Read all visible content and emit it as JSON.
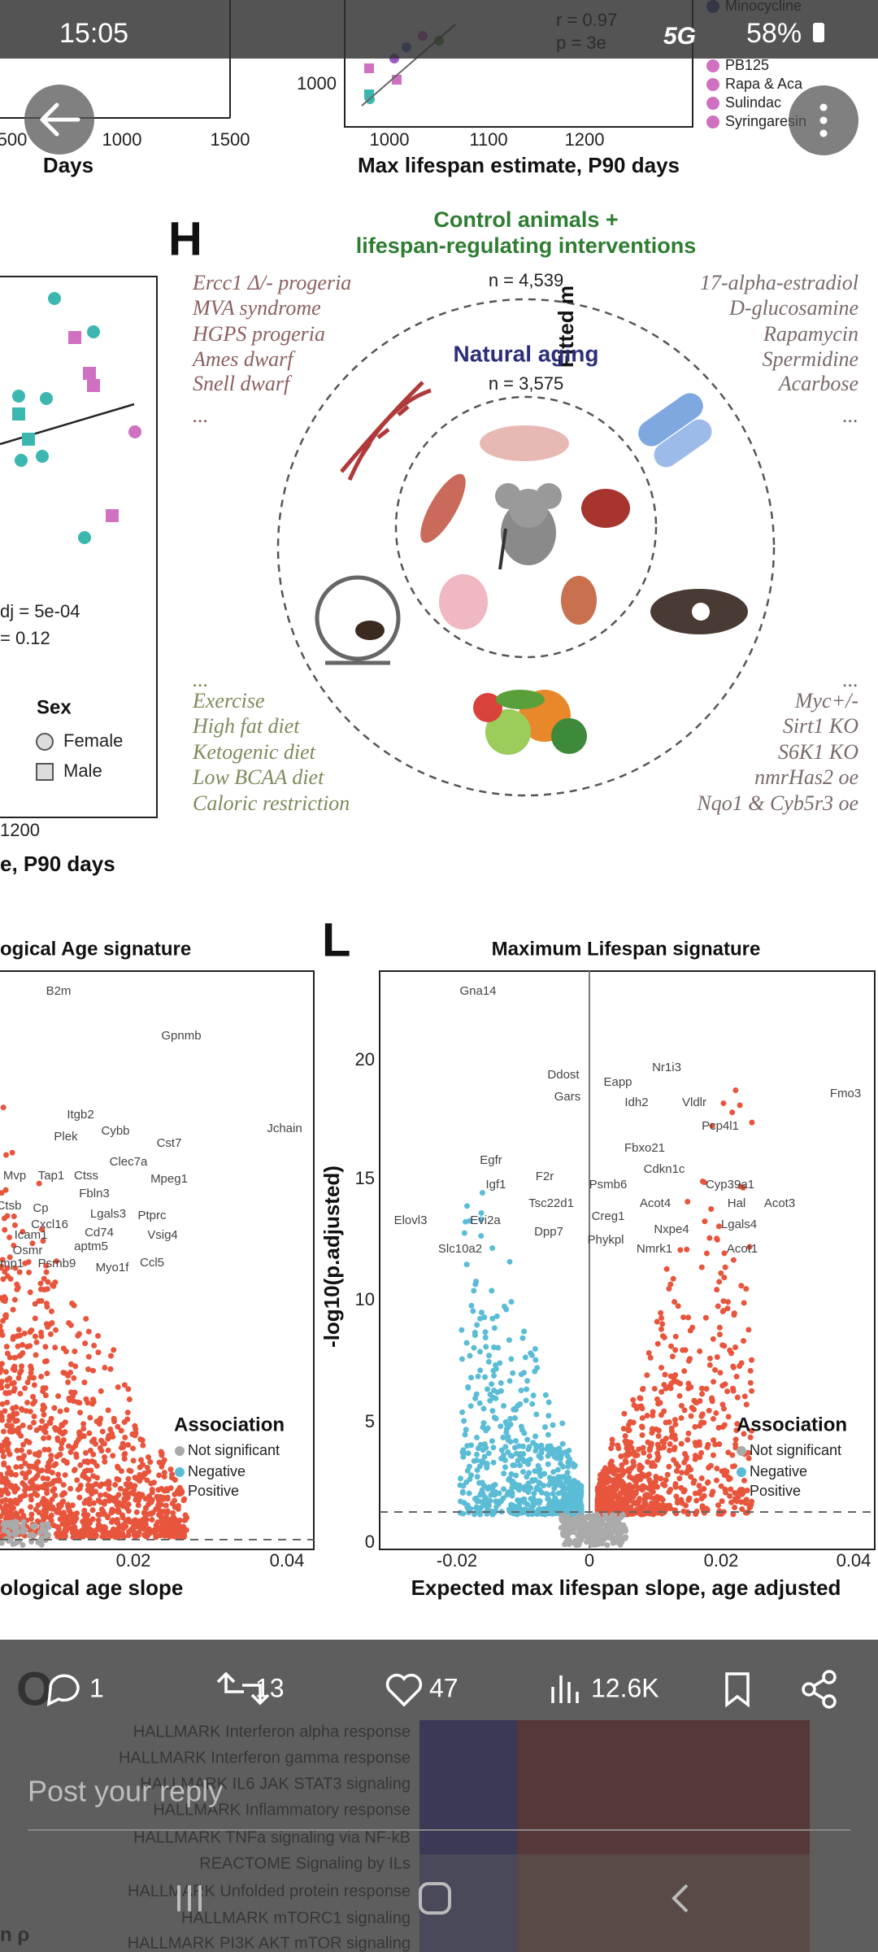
{
  "status_bar": {
    "time": "15:05",
    "network": "5G",
    "battery": "58%"
  },
  "figure": {
    "top_left_plot": {
      "x_ticks": [
        "500",
        "1000",
        "1500"
      ],
      "x_label": "Days"
    },
    "top_right_plot": {
      "y_label": "Fitted m",
      "y_tick": "1000",
      "x_ticks": [
        "1000",
        "1100",
        "1200"
      ],
      "x_label": "Max lifespan estimate, P90 days",
      "stats": [
        "r = 0.97",
        "p = 3e"
      ],
      "legend": [
        "Minocycline",
        "PB125",
        "Rapa & Aca",
        "Sulindac",
        "Syringaresin"
      ]
    },
    "panel_h": {
      "letter": "H",
      "title_lines": [
        "Control animals +",
        "lifespan-regulating interventions"
      ],
      "outer_n": "n = 4,539",
      "inner_title": "Natural aging",
      "inner_n": "n = 3,575",
      "top_left": [
        "Ercc1 Δ/- progeria",
        "MVA syndrome",
        "HGPS progeria",
        "Ames dwarf",
        "Snell dwarf",
        "..."
      ],
      "top_right": [
        "17-alpha-estradiol",
        "D-glucosamine",
        "Rapamycin",
        "Spermidine",
        "Acarbose",
        "..."
      ],
      "bottom_left": [
        "...",
        "Exercise",
        "High fat diet",
        "Ketogenic diet",
        "Low BCAA diet",
        "Caloric restriction"
      ],
      "bottom_right": [
        "...",
        "Myc+/-",
        "Sirt1 KO",
        "S6K1 KO",
        "nmrHas2 oe",
        "Nqo1 & Cyb5r3 oe"
      ]
    },
    "left_scatter": {
      "stats": [
        "dj = 5e-04",
        "= 0.12"
      ],
      "legend_title": "Sex",
      "legend": [
        "Female",
        "Male"
      ],
      "x_tick": "1200",
      "x_label": "e, P90 days"
    },
    "panel_k": {
      "title": "ogical Age signature",
      "x_ticks": [
        "0.02",
        "0.04"
      ],
      "x_label": "ological age slope",
      "legend_title": "Association",
      "legend": [
        "Not significant",
        "Negative",
        "Positive"
      ],
      "genes": [
        "B2m",
        "Gpnmb",
        "Itgb2",
        "Plek",
        "Cybb",
        "Cst7",
        "Jchain",
        "Clec7a",
        "Ctss",
        "Mpeg1",
        "Tap1",
        "Mvp",
        "Fbln3",
        "Ctsb",
        "Cp",
        "Lgals3",
        "Ptprc",
        "Cxcl16",
        "Cd74",
        "Vsig4",
        "Icam1",
        "aptm5",
        "Ccl5",
        "Osmr",
        "Psmb9",
        "Myo1f",
        "mp1"
      ]
    },
    "panel_l": {
      "letter": "L",
      "title": "Maximum Lifespan signature",
      "y_label": "-log10(p.adjusted)",
      "y_ticks": [
        "20",
        "15",
        "10",
        "5",
        "0"
      ],
      "x_ticks": [
        "-0.02",
        "0",
        "0.02",
        "0.04"
      ],
      "x_label": "Expected max lifespan slope, age adjusted",
      "legend_title": "Association",
      "legend": [
        "Not significant",
        "Negative",
        "Positive"
      ],
      "genes": [
        "Gna14",
        "Ddost",
        "Gars",
        "Eapp",
        "Nr1i3",
        "Idh2",
        "Vldlr",
        "Pcp4l1",
        "Fmo3",
        "Fbxo21",
        "Cdkn1c",
        "Psmb6",
        "Cyp39a1",
        "Acot4",
        "Hal",
        "Acot3",
        "Creg1",
        "Lgals4",
        "Phykpl",
        "Nxpe4",
        "Nmrk1",
        "Acot1",
        "Egfr",
        "Igf1",
        "F2r",
        "Tsc22d1",
        "Elovl3",
        "Evi2a",
        "Dpp7",
        "Slc10a2"
      ]
    },
    "panel_o": {
      "letter": "O",
      "corner_label": "n ρ",
      "rows": [
        "HALLMARK Interferon alpha response",
        "HALLMARK Interferon gamma response",
        "HALLMARK IL6 JAK STAT3 signaling",
        "HALLMARK Inflammatory response",
        "HALLMARK TNFa signaling via NF-kB",
        "REACTOME Signaling by ILs",
        "HALLMARK Unfolded protein response",
        "HALLMARK mTORC1 signaling",
        "HALLMARK PI3K AKT mTOR signaling"
      ]
    }
  },
  "actions": {
    "replies": "1",
    "reposts": "13",
    "likes": "47",
    "views": "12.6K"
  },
  "reply_placeholder": "Post your reply"
}
